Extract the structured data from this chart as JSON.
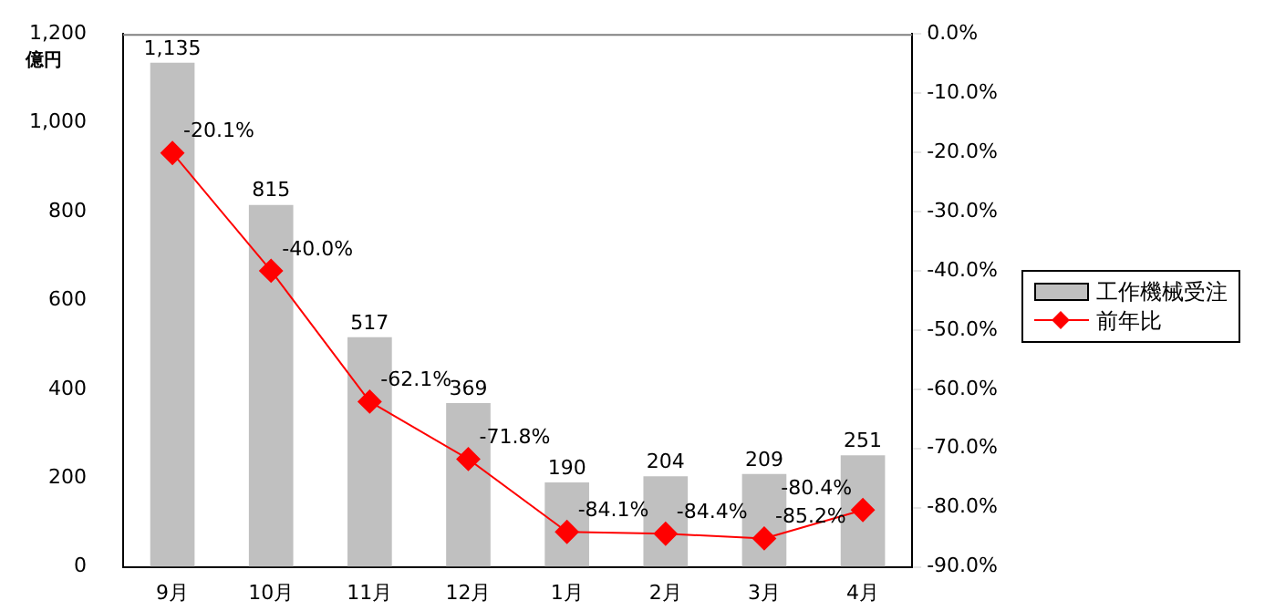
{
  "chart_data": {
    "type": "bar",
    "ylabel": "億円",
    "categories": [
      "9月",
      "10月",
      "11月",
      "12月",
      "1月",
      "2月",
      "3月",
      "4月"
    ],
    "series": [
      {
        "name": "工作機械受注",
        "color": "#c0c0c0",
        "values": [
          1135,
          815,
          517,
          369,
          190,
          204,
          209,
          251
        ],
        "value_labels": [
          "1,135",
          "815",
          "517",
          "369",
          "190",
          "204",
          "209",
          "251"
        ]
      },
      {
        "name": "前年比",
        "type": "line",
        "axis": "y2",
        "color": "#ff0000",
        "marker": "diamond",
        "values": [
          -20.1,
          -40.0,
          -62.1,
          -71.8,
          -84.1,
          -84.4,
          -85.2,
          -80.4
        ],
        "value_labels": [
          "-20.1%",
          "-40.0%",
          "-62.1%",
          "-71.8%",
          "-84.1%",
          "-84.4%",
          "-85.2%",
          "-80.4%"
        ]
      }
    ],
    "ylim": [
      0,
      1200
    ],
    "yticks": [
      0,
      200,
      400,
      600,
      800,
      {
        "value": 1000,
        "label": "1,000"
      },
      {
        "value": 1200,
        "label": "1,200"
      }
    ],
    "y2lim": [
      -90,
      0
    ],
    "y2ticks": [
      {
        "value": -90,
        "label": "-90.0%"
      },
      {
        "value": -80,
        "label": "-80.0%"
      },
      {
        "value": -70,
        "label": "-70.0%"
      },
      {
        "value": -60,
        "label": "-60.0%"
      },
      {
        "value": -50,
        "label": "-50.0%"
      },
      {
        "value": -40,
        "label": "-40.0%"
      },
      {
        "value": -30,
        "label": "-30.0%"
      },
      {
        "value": -20,
        "label": "-20.0%"
      },
      {
        "value": -10,
        "label": "-10.0%"
      },
      {
        "value": 0,
        "label": "0.0%"
      }
    ],
    "grid": false,
    "legend": "right"
  }
}
